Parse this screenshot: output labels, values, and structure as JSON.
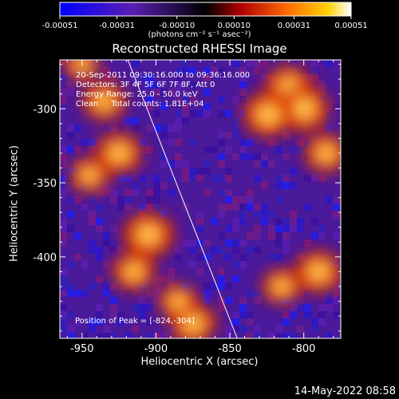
{
  "header": {
    "title": "Reconstructed RHESSI Image",
    "units_label": "(photons cm⁻² s⁻¹ asec⁻²)"
  },
  "colorbar": {
    "min": -0.00051,
    "max": 0.00051,
    "tick_values": [
      -0.00051,
      -0.00031,
      -0.0001,
      0.0001,
      0.00031,
      0.00051
    ],
    "tick_labels": [
      "-0.00051",
      "-0.00031",
      "-0.00010",
      "0.00010",
      "0.00031",
      "0.00051"
    ],
    "colormap": "blue-purple-black-red-orange-yellow-white"
  },
  "annotations": {
    "time_range": "20-Sep-2011 09:30:16.000 to 09:36:16.000",
    "detectors": "Detectors: 3F 4F 5F 6F 7F 8F, Att 0",
    "energy_range": "Energy Range: 25.0 - 50.0 keV",
    "clean_counts": "Clean     Total counts: 1.81E+04",
    "peak_position": "Position of Peak = [-824,-304]"
  },
  "footer": {
    "datestamp": "14-May-2022 08:58"
  },
  "chart_data": {
    "type": "heatmap",
    "title": "Reconstructed RHESSI Image",
    "xlabel": "Heliocentric X (arcsec)",
    "ylabel": "Heliocentric Y (arcsec)",
    "xlim": [
      -965,
      -775
    ],
    "ylim": [
      -455,
      -267
    ],
    "x_ticks": [
      -950,
      -900,
      -850,
      -800
    ],
    "x_tick_labels": [
      "-950",
      "-900",
      "-850",
      "-800"
    ],
    "y_ticks": [
      -400,
      -350,
      -300
    ],
    "y_tick_labels": [
      "-400",
      "-350",
      "-300"
    ],
    "limb_line": {
      "x": [
        -919,
        -845
      ],
      "y": [
        -267,
        -455
      ]
    },
    "peak": {
      "x": -824,
      "y": -304
    },
    "bright_regions": [
      {
        "x": -935,
        "y": -295,
        "intensity": 0.8
      },
      {
        "x": -925,
        "y": -330,
        "intensity": 0.9
      },
      {
        "x": -945,
        "y": -345,
        "intensity": 0.7
      },
      {
        "x": -905,
        "y": -385,
        "intensity": 1.0
      },
      {
        "x": -915,
        "y": -410,
        "intensity": 0.8
      },
      {
        "x": -875,
        "y": -445,
        "intensity": 0.9
      },
      {
        "x": -885,
        "y": -430,
        "intensity": 0.7
      },
      {
        "x": -810,
        "y": -285,
        "intensity": 0.9
      },
      {
        "x": -800,
        "y": -300,
        "intensity": 1.0
      },
      {
        "x": -824,
        "y": -304,
        "intensity": 1.0
      },
      {
        "x": -785,
        "y": -330,
        "intensity": 0.8
      },
      {
        "x": -790,
        "y": -410,
        "intensity": 0.9
      },
      {
        "x": -815,
        "y": -420,
        "intensity": 0.7
      },
      {
        "x": -950,
        "y": -270,
        "intensity": 0.6
      }
    ]
  }
}
